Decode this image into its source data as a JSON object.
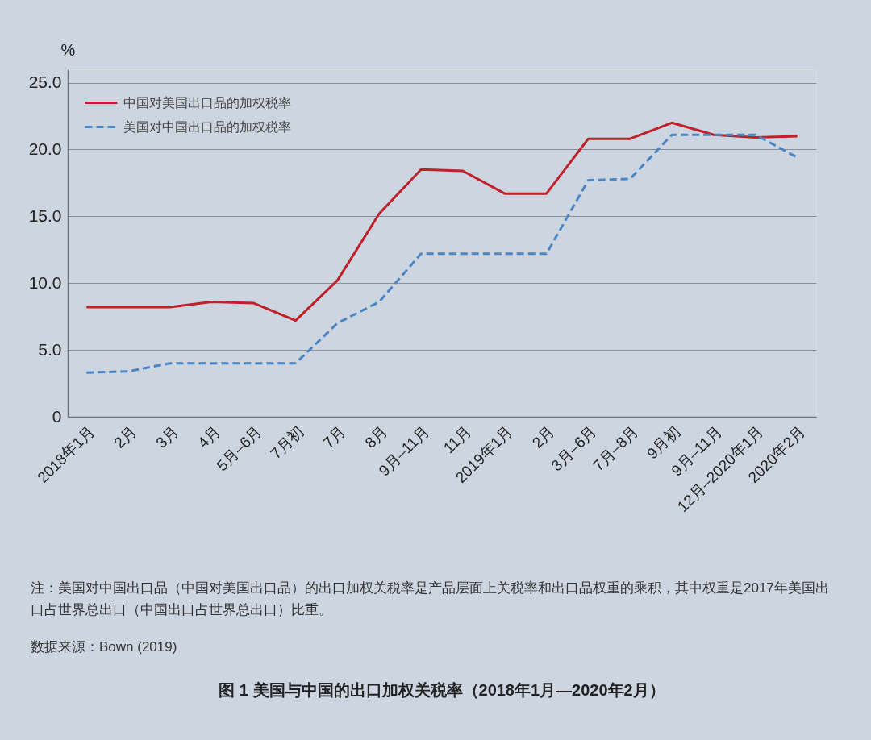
{
  "chart_data": {
    "type": "line",
    "title": "图 1 美国与中国的出口加权关税率（2018年1月—2020年2月）",
    "ylabel": "%",
    "categories": [
      "2018年1月",
      "2月",
      "3月",
      "4月",
      "5月–6月",
      "7月初",
      "7月",
      "8月",
      "9月–11月",
      "11月",
      "2019年1月",
      "2月",
      "3月–6月",
      "7月–8月",
      "9月初",
      "9月–11月",
      "12月–2020年1月",
      "2020年2月"
    ],
    "series": [
      {
        "name": "中国对美国出口品的加权税率",
        "color": "#c0202a",
        "line_style": "solid",
        "values": [
          8.2,
          8.2,
          8.2,
          8.6,
          8.5,
          7.2,
          10.2,
          15.2,
          18.5,
          18.4,
          16.7,
          16.7,
          20.8,
          20.8,
          22.0,
          21.1,
          20.9,
          21.0
        ]
      },
      {
        "name": "美国对中国出口品的加权税率",
        "color": "#4a86c6",
        "line_style": "dashed",
        "values": [
          3.3,
          3.4,
          4.0,
          4.0,
          4.0,
          4.0,
          7.0,
          8.6,
          12.2,
          12.2,
          12.2,
          12.2,
          17.7,
          17.8,
          21.1,
          21.1,
          21.1,
          19.4
        ]
      }
    ],
    "ylim": [
      0,
      26
    ],
    "yticks": [
      0,
      {
        "value": 5,
        "label": "5.0"
      },
      {
        "value": 10,
        "label": "10.0"
      },
      {
        "value": 15,
        "label": "15.0"
      },
      {
        "value": 20,
        "label": "20.0"
      },
      {
        "value": 25,
        "label": "25.0"
      }
    ],
    "grid": "y",
    "legend": "top left",
    "annotations": [
      "注：美国对中国出口品（中国对美国出口品）的出口加权关税率是产品层面上关税率和出口品权重的乘积，其中权重是2017年美国出口占世界总出口（中国出口占世界总出口）比重。",
      "数据来源：Bown (2019)"
    ]
  }
}
